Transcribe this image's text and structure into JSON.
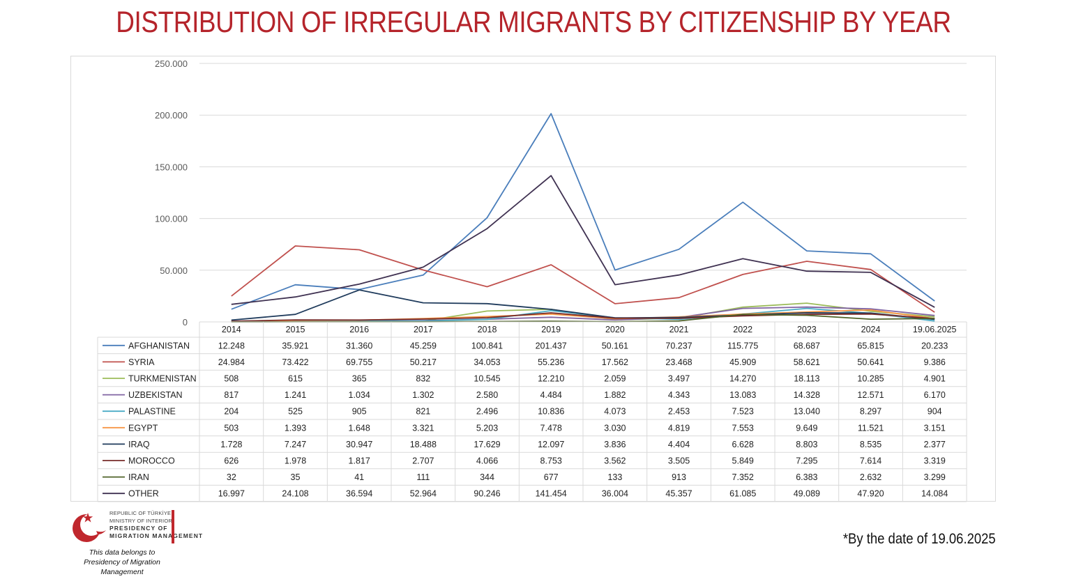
{
  "title": "DISTRIBUTION OF IRREGULAR MIGRANTS BY CITIZENSHIP BY YEAR",
  "footnote": "*By the date of 19.06.2025",
  "logo": {
    "line1": "REPUBLIC OF TÜRKİYE",
    "line2": "MINISTRY OF INTERIOR",
    "line3": "PRESIDENCY OF",
    "line4": "MIGRATION MANAGEMENT",
    "color": "#c0272d"
  },
  "credit": {
    "line1": "This data belongs to",
    "line2": "Presidency of Migration Management"
  },
  "chart_data": {
    "type": "line",
    "title": "DISTRIBUTION OF IRREGULAR MIGRANTS BY CITIZENSHIP BY YEAR",
    "categories": [
      "2014",
      "2015",
      "2016",
      "2017",
      "2018",
      "2019",
      "2020",
      "2021",
      "2022",
      "2023",
      "2024",
      "19.06.2025"
    ],
    "ylim": [
      0,
      250000
    ],
    "yticks": [
      0,
      50000,
      100000,
      150000,
      200000,
      250000
    ],
    "ytick_labels": [
      "0",
      "50.000",
      "100.000",
      "150.000",
      "200.000",
      "250.000"
    ],
    "grid": true,
    "legend": "data-table-below",
    "series": [
      {
        "name": "AFGHANISTAN",
        "color": "#4a7ebb",
        "values": [
          12248,
          35921,
          31360,
          45259,
          100841,
          201437,
          50161,
          70237,
          115775,
          68687,
          65815,
          20233
        ],
        "labels": [
          "12.248",
          "35.921",
          "31.360",
          "45.259",
          "100.841",
          "201.437",
          "50.161",
          "70.237",
          "115.775",
          "68.687",
          "65.815",
          "20.233"
        ]
      },
      {
        "name": "SYRIA",
        "color": "#c0504d",
        "values": [
          24984,
          73422,
          69755,
          50217,
          34053,
          55236,
          17562,
          23468,
          45909,
          58621,
          50641,
          9386
        ],
        "labels": [
          "24.984",
          "73.422",
          "69.755",
          "50.217",
          "34.053",
          "55.236",
          "17.562",
          "23.468",
          "45.909",
          "58.621",
          "50.641",
          "9.386"
        ]
      },
      {
        "name": "TURKMENISTAN",
        "color": "#9bbb59",
        "values": [
          508,
          615,
          365,
          832,
          10545,
          12210,
          2059,
          3497,
          14270,
          18113,
          10285,
          4901
        ],
        "labels": [
          "508",
          "615",
          "365",
          "832",
          "10.545",
          "12.210",
          "2.059",
          "3.497",
          "14.270",
          "18.113",
          "10.285",
          "4.901"
        ]
      },
      {
        "name": "UZBEKISTAN",
        "color": "#8064a2",
        "values": [
          817,
          1241,
          1034,
          1302,
          2580,
          4484,
          1882,
          4343,
          13083,
          14328,
          12571,
          6170
        ],
        "labels": [
          "817",
          "1.241",
          "1.034",
          "1.302",
          "2.580",
          "4.484",
          "1.882",
          "4.343",
          "13.083",
          "14.328",
          "12.571",
          "6.170"
        ]
      },
      {
        "name": "PALASTINE",
        "color": "#4bacc6",
        "values": [
          204,
          525,
          905,
          821,
          2496,
          10836,
          4073,
          2453,
          7523,
          13040,
          8297,
          904
        ],
        "labels": [
          "204",
          "525",
          "905",
          "821",
          "2.496",
          "10.836",
          "4.073",
          "2.453",
          "7.523",
          "13.040",
          "8.297",
          "904"
        ]
      },
      {
        "name": "EGYPT",
        "color": "#f79646",
        "values": [
          503,
          1393,
          1648,
          3321,
          5203,
          7478,
          3030,
          4819,
          7553,
          9649,
          11521,
          3151
        ],
        "labels": [
          "503",
          "1.393",
          "1.648",
          "3.321",
          "5.203",
          "7.478",
          "3.030",
          "4.819",
          "7.553",
          "9.649",
          "11.521",
          "3.151"
        ]
      },
      {
        "name": "IRAQ",
        "color": "#1f3b5c",
        "values": [
          1728,
          7247,
          30947,
          18488,
          17629,
          12097,
          3836,
          4404,
          6628,
          8803,
          8535,
          2377
        ],
        "labels": [
          "1.728",
          "7.247",
          "30.947",
          "18.488",
          "17.629",
          "12.097",
          "3.836",
          "4.404",
          "6.628",
          "8.803",
          "8.535",
          "2.377"
        ]
      },
      {
        "name": "MOROCCO",
        "color": "#772c2a",
        "values": [
          626,
          1978,
          1817,
          2707,
          4066,
          8753,
          3562,
          3505,
          5849,
          7295,
          7614,
          3319
        ],
        "labels": [
          "626",
          "1.978",
          "1.817",
          "2.707",
          "4.066",
          "8.753",
          "3.562",
          "3.505",
          "5.849",
          "7.295",
          "7.614",
          "3.319"
        ]
      },
      {
        "name": "IRAN",
        "color": "#4f6228",
        "values": [
          32,
          35,
          41,
          111,
          344,
          677,
          133,
          913,
          7352,
          6383,
          2632,
          3299
        ],
        "labels": [
          "32",
          "35",
          "41",
          "111",
          "344",
          "677",
          "133",
          "913",
          "7.352",
          "6.383",
          "2.632",
          "3.299"
        ]
      },
      {
        "name": "OTHER",
        "color": "#3f3151",
        "values": [
          16997,
          24108,
          36594,
          52964,
          90246,
          141454,
          36004,
          45357,
          61085,
          49089,
          47920,
          14084
        ],
        "labels": [
          "16.997",
          "24.108",
          "36.594",
          "52.964",
          "90.246",
          "141.454",
          "36.004",
          "45.357",
          "61.085",
          "49.089",
          "47.920",
          "14.084"
        ]
      }
    ]
  }
}
